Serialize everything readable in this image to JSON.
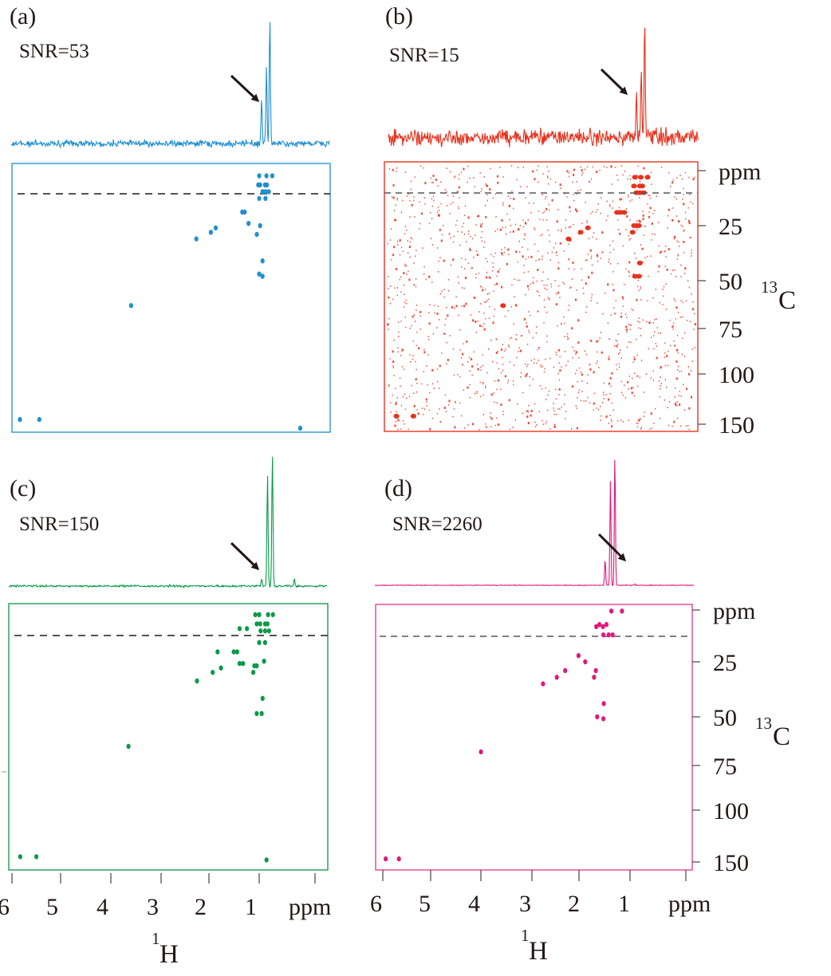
{
  "figure": {
    "axis_labels": {
      "x_nucleus_sup": "1",
      "x_nucleus": "H",
      "y_nucleus_sup": "13",
      "y_nucleus": "C",
      "unit": "ppm"
    }
  },
  "chart_data": [
    {
      "panel": "(a)",
      "type": "scatter",
      "title": "SNR=53",
      "snr": 53,
      "color": "#1f8fd0",
      "noise_level": "moderate",
      "xlabel": "1H (ppm)",
      "ylabel": "13C (ppm)",
      "xlim": [
        6.2,
        -0.1
      ],
      "ylim": [
        0,
        155
      ],
      "x_ticks": [
        6,
        5,
        4,
        3,
        2,
        1
      ],
      "y_ticks": [
        25,
        50,
        75,
        100,
        150
      ],
      "dashed_line_13c": 10,
      "trace_peaks_1h": [
        0.95,
        0.85,
        0.78
      ],
      "trace_peak_heights": [
        0.35,
        0.6,
        1.0
      ],
      "arrow_target_1h": 0.95,
      "cross_peaks": [
        {
          "h": 1.0,
          "c": 3
        },
        {
          "h": 0.85,
          "c": 3
        },
        {
          "h": 0.73,
          "c": 3
        },
        {
          "h": 1.02,
          "c": 7
        },
        {
          "h": 0.98,
          "c": 7
        },
        {
          "h": 0.88,
          "c": 7
        },
        {
          "h": 0.84,
          "c": 7
        },
        {
          "h": 0.93,
          "c": 10
        },
        {
          "h": 0.87,
          "c": 10
        },
        {
          "h": 0.8,
          "c": 10
        },
        {
          "h": 1.0,
          "c": 13
        },
        {
          "h": 0.87,
          "c": 13
        },
        {
          "h": 1.35,
          "c": 19
        },
        {
          "h": 1.3,
          "c": 19
        },
        {
          "h": 1.22,
          "c": 24
        },
        {
          "h": 0.98,
          "c": 25
        },
        {
          "h": 1.9,
          "c": 26
        },
        {
          "h": 2.0,
          "c": 28
        },
        {
          "h": 1.05,
          "c": 29
        },
        {
          "h": 2.3,
          "c": 31
        },
        {
          "h": 0.93,
          "c": 41
        },
        {
          "h": 1.0,
          "c": 47
        },
        {
          "h": 0.93,
          "c": 48
        },
        {
          "h": 3.65,
          "c": 63
        },
        {
          "h": 5.95,
          "c": 142
        },
        {
          "h": 5.55,
          "c": 142
        },
        {
          "h": 0.15,
          "c": 150
        }
      ]
    },
    {
      "panel": "(b)",
      "type": "scatter",
      "title": "SNR=15",
      "snr": 15,
      "color": "#e8321e",
      "noise_level": "high",
      "xlabel": "1H (ppm)",
      "ylabel": "13C (ppm)",
      "xlim": [
        6.2,
        -0.1
      ],
      "ylim": [
        0,
        155
      ],
      "y_tick_labels": [
        "ppm",
        "25",
        "50",
        "75",
        "100",
        "150"
      ],
      "y_ticks": [
        0,
        25,
        50,
        75,
        100,
        150
      ],
      "dashed_line_13c": 10,
      "trace_peaks_1h": [
        0.95,
        0.85,
        0.78
      ],
      "trace_peak_heights": [
        0.35,
        0.6,
        1.0
      ],
      "arrow_target_1h": 0.95,
      "cross_peaks": [
        {
          "h": 0.98,
          "c": 3
        },
        {
          "h": 0.86,
          "c": 3
        },
        {
          "h": 0.72,
          "c": 3
        },
        {
          "h": 1.0,
          "c": 7
        },
        {
          "h": 0.88,
          "c": 7
        },
        {
          "h": 0.83,
          "c": 7
        },
        {
          "h": 0.95,
          "c": 10
        },
        {
          "h": 0.88,
          "c": 10
        },
        {
          "h": 0.8,
          "c": 10
        },
        {
          "h": 1.35,
          "c": 19
        },
        {
          "h": 1.28,
          "c": 19
        },
        {
          "h": 1.2,
          "c": 19
        },
        {
          "h": 1.0,
          "c": 25
        },
        {
          "h": 0.95,
          "c": 25
        },
        {
          "h": 0.9,
          "c": 25
        },
        {
          "h": 1.95,
          "c": 26
        },
        {
          "h": 2.1,
          "c": 28
        },
        {
          "h": 1.03,
          "c": 28
        },
        {
          "h": 2.35,
          "c": 31
        },
        {
          "h": 0.88,
          "c": 42
        },
        {
          "h": 0.98,
          "c": 48
        },
        {
          "h": 0.9,
          "c": 48
        },
        {
          "h": 3.7,
          "c": 63
        },
        {
          "h": 5.9,
          "c": 142
        },
        {
          "h": 5.55,
          "c": 142
        }
      ]
    },
    {
      "panel": "(c)",
      "type": "scatter",
      "title": "SNR=150",
      "snr": 150,
      "color": "#0a9a48",
      "noise_level": "low",
      "xlabel": "1H (ppm)",
      "ylabel": "13C (ppm)",
      "xlim": [
        6.2,
        -0.1
      ],
      "ylim": [
        0,
        155
      ],
      "x_tick_labels": [
        "6",
        "5",
        "4",
        "3",
        "2",
        "1",
        "ppm"
      ],
      "x_ticks": [
        6,
        5,
        4,
        3,
        2,
        1,
        0
      ],
      "dashed_line_13c": 10,
      "trace_peaks_1h": [
        0.95,
        0.83,
        0.73,
        0.28
      ],
      "trace_peak_heights": [
        0.05,
        0.85,
        1.0,
        0.05
      ],
      "arrow_target_1h": 0.95,
      "cross_peaks": [
        {
          "h": 1.08,
          "c": 3
        },
        {
          "h": 1.0,
          "c": 3
        },
        {
          "h": 0.82,
          "c": 3
        },
        {
          "h": 0.72,
          "c": 3
        },
        {
          "h": 1.05,
          "c": 7
        },
        {
          "h": 0.98,
          "c": 7
        },
        {
          "h": 0.88,
          "c": 7
        },
        {
          "h": 0.83,
          "c": 7
        },
        {
          "h": 1.4,
          "c": 9
        },
        {
          "h": 1.25,
          "c": 9
        },
        {
          "h": 0.97,
          "c": 10
        },
        {
          "h": 0.88,
          "c": 10
        },
        {
          "h": 0.8,
          "c": 10
        },
        {
          "h": 1.0,
          "c": 15
        },
        {
          "h": 0.88,
          "c": 15
        },
        {
          "h": 1.85,
          "c": 19
        },
        {
          "h": 1.52,
          "c": 19
        },
        {
          "h": 1.45,
          "c": 19
        },
        {
          "h": 1.4,
          "c": 24
        },
        {
          "h": 1.33,
          "c": 24
        },
        {
          "h": 1.1,
          "c": 25
        },
        {
          "h": 1.05,
          "c": 25
        },
        {
          "h": 0.9,
          "c": 23
        },
        {
          "h": 1.78,
          "c": 26
        },
        {
          "h": 1.95,
          "c": 28
        },
        {
          "h": 1.12,
          "c": 28
        },
        {
          "h": 2.27,
          "c": 32
        },
        {
          "h": 0.93,
          "c": 40
        },
        {
          "h": 1.05,
          "c": 47
        },
        {
          "h": 0.95,
          "c": 47
        },
        {
          "h": 3.67,
          "c": 64
        },
        {
          "h": 5.88,
          "c": 142
        },
        {
          "h": 5.55,
          "c": 142
        },
        {
          "h": 0.85,
          "c": 145
        }
      ]
    },
    {
      "panel": "(d)",
      "type": "scatter",
      "title": "SNR=2260",
      "snr": 2260,
      "color": "#e0197a",
      "noise_level": "very low",
      "xlabel": "1H (ppm)",
      "ylabel": "13C (ppm)",
      "xlim": [
        6.2,
        -0.1
      ],
      "ylim": [
        0,
        155
      ],
      "x_tick_labels": [
        "6",
        "5",
        "4",
        "3",
        "2",
        "1",
        "ppm"
      ],
      "x_ticks": [
        6,
        5,
        4,
        3,
        2,
        1,
        0
      ],
      "y_tick_labels": [
        "ppm",
        "25",
        "50",
        "75",
        "100",
        "150"
      ],
      "y_ticks": [
        0,
        25,
        50,
        75,
        100,
        150
      ],
      "dashed_line_13c": 10,
      "trace_peaks_1h": [
        0.95,
        0.83,
        0.73,
        0.28
      ],
      "trace_peak_heights": [
        0.2,
        0.78,
        1.0,
        0.01
      ],
      "arrow_target_1h": 0.95,
      "cross_peaks": [
        {
          "h": 0.81,
          "c": 0.5
        },
        {
          "h": 0.57,
          "c": 0.5
        },
        {
          "h": 1.15,
          "c": 8
        },
        {
          "h": 1.08,
          "c": 7
        },
        {
          "h": 1.0,
          "c": 8
        },
        {
          "h": 0.92,
          "c": 7
        },
        {
          "h": 0.99,
          "c": 12
        },
        {
          "h": 0.87,
          "c": 12
        },
        {
          "h": 0.78,
          "c": 12
        },
        {
          "h": 1.55,
          "c": 22
        },
        {
          "h": 1.4,
          "c": 25
        },
        {
          "h": 1.85,
          "c": 29
        },
        {
          "h": 1.16,
          "c": 29
        },
        {
          "h": 2.04,
          "c": 32
        },
        {
          "h": 1.2,
          "c": 32
        },
        {
          "h": 2.35,
          "c": 35
        },
        {
          "h": 0.98,
          "c": 44
        },
        {
          "h": 1.13,
          "c": 50
        },
        {
          "h": 0.99,
          "c": 51
        },
        {
          "h": 3.75,
          "c": 68
        },
        {
          "h": 5.9,
          "c": 147
        },
        {
          "h": 5.6,
          "c": 147
        }
      ]
    }
  ]
}
